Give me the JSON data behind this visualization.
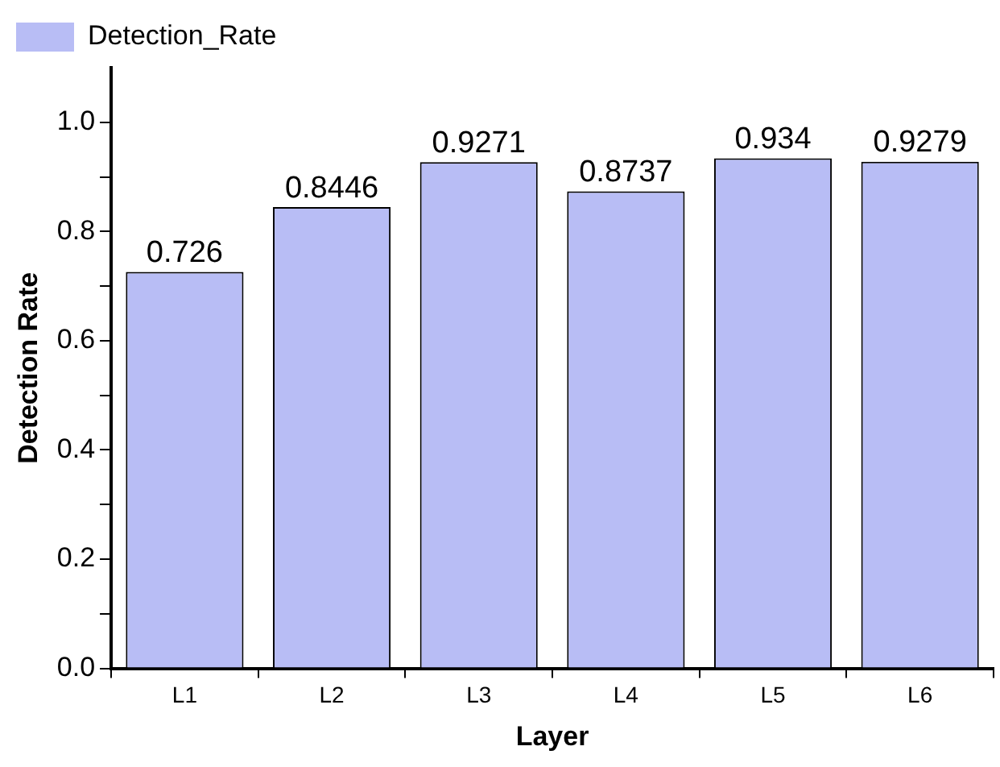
{
  "chart_data": {
    "type": "bar",
    "xlabel": "Layer",
    "ylabel": "Detection Rate",
    "categories": [
      "L1",
      "L2",
      "L3",
      "L4",
      "L5",
      "L6"
    ],
    "series": [
      {
        "name": "Detection_Rate",
        "color": "#b8bdf5",
        "values": [
          0.726,
          0.8446,
          0.9271,
          0.8737,
          0.934,
          0.9279
        ]
      }
    ],
    "ylim": [
      0,
      1.1
    ],
    "yticks": [
      {
        "value": 0,
        "label": "0.0"
      },
      {
        "value": 0.1,
        "label": null
      },
      {
        "value": 0.2,
        "label": "0.2"
      },
      {
        "value": 0.3,
        "label": null
      },
      {
        "value": 0.4,
        "label": "0.4"
      },
      {
        "value": 0.5,
        "label": null
      },
      {
        "value": 0.6,
        "label": "0.6"
      },
      {
        "value": 0.7,
        "label": null
      },
      {
        "value": 0.8,
        "label": "0.8"
      },
      {
        "value": 0.9,
        "label": null
      },
      {
        "value": 1.0,
        "label": "1.0"
      }
    ],
    "data_labels": true,
    "grid": false,
    "legend": "top left"
  }
}
